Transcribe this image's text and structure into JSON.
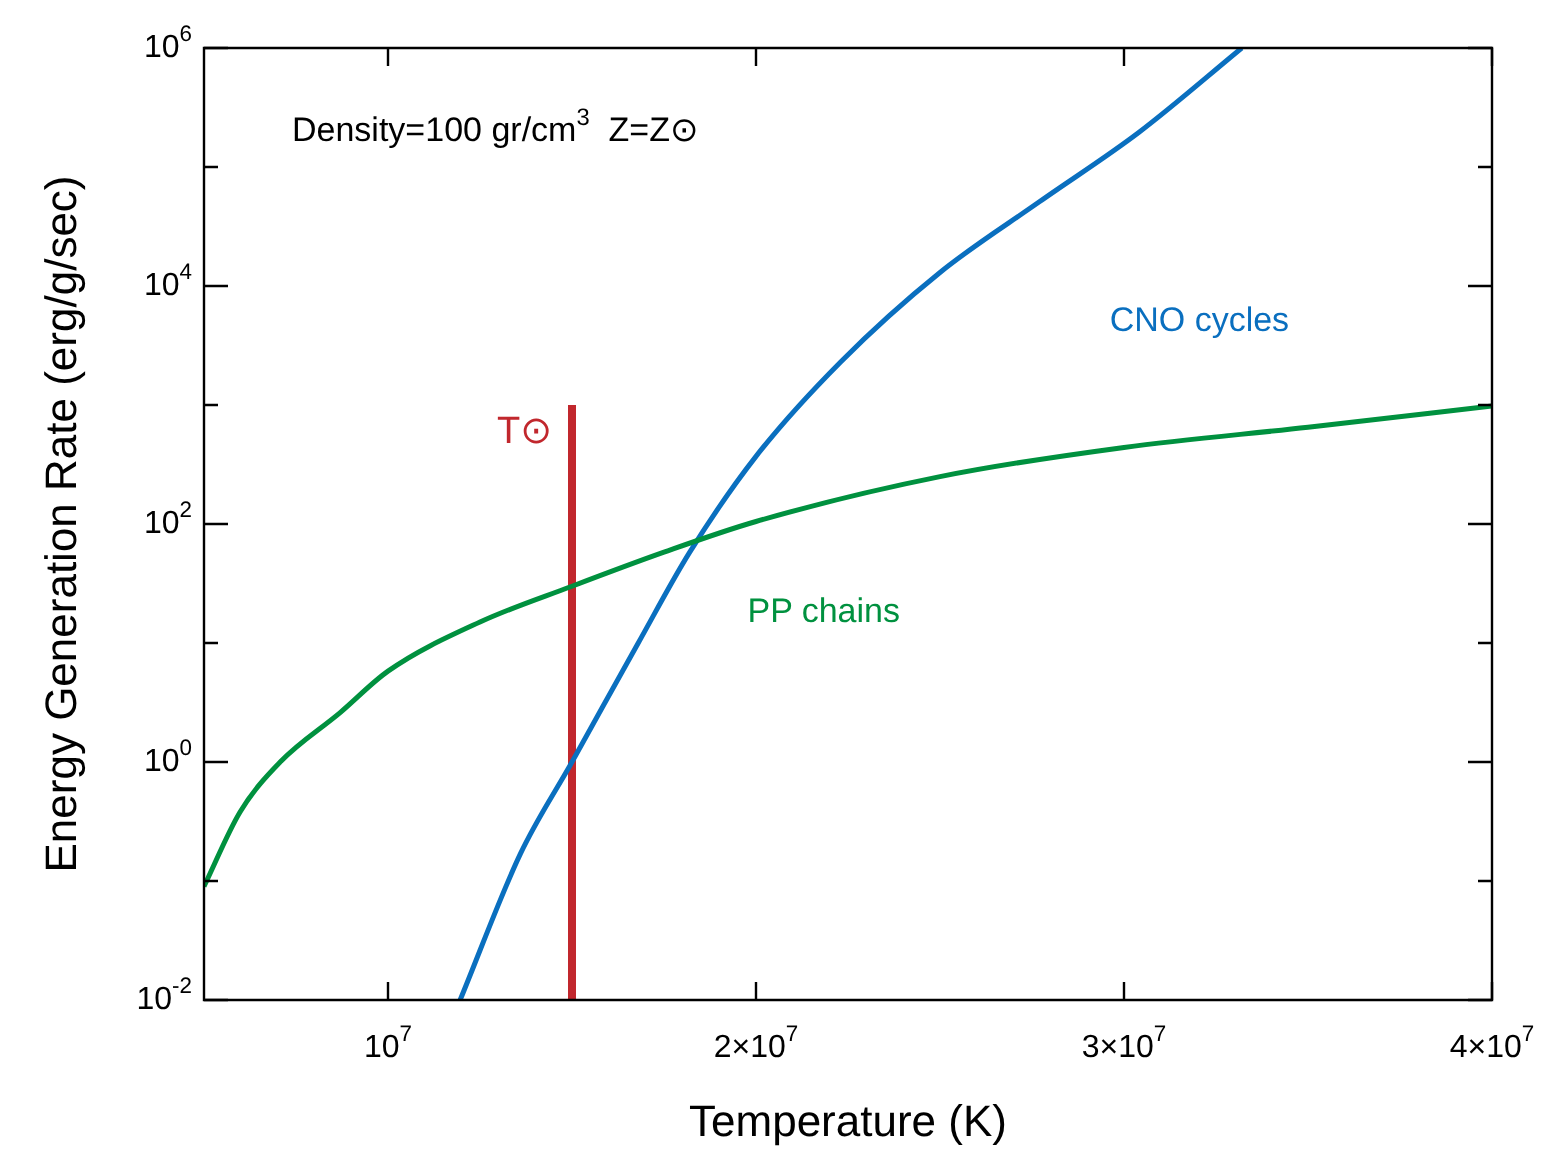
{
  "chart_data": {
    "type": "line",
    "xlabel": "Temperature (K)",
    "ylabel": "Energy Generation Rate (erg/g/sec)",
    "annotations": [
      "Density=100 gr/cm$^{3}$  Z=Z⊙"
    ],
    "log": "y",
    "grid": false,
    "legend": false,
    "marker": "none",
    "line_style": "solid",
    "xlim": [
      5000000,
      40000000
    ],
    "xticks": [
      {
        "value": 10000000,
        "label": "10$^{7}$"
      },
      {
        "value": 20000000,
        "label": "2×10$^{7}$"
      },
      {
        "value": 30000000,
        "label": "3×10$^{7}$"
      },
      {
        "value": 40000000,
        "label": "4×10$^{7}$"
      }
    ],
    "ylim": [
      0.01,
      1000000
    ],
    "yticks": [
      {
        "value": 0.01,
        "label": "10$^{-2}$"
      },
      {
        "value": 0.1,
        "label": null
      },
      {
        "value": 1,
        "label": "10$^{0}$"
      },
      {
        "value": 10,
        "label": null
      },
      {
        "value": 100,
        "label": "10$^{2}$"
      },
      {
        "value": 1000,
        "label": null
      },
      {
        "value": 10000,
        "label": "10$^{4}$"
      },
      {
        "value": 100000,
        "label": null
      },
      {
        "value": 1000000,
        "label": "10$^{6}$"
      }
    ],
    "series": [
      {
        "name": "PP chains",
        "color": "#00913f",
        "x": [
          5000000,
          5980000,
          7070000,
          8700000,
          10000000,
          12500000,
          15000000,
          17500000,
          20000000,
          25000000,
          30000000,
          35000000,
          40000000
        ],
        "values": [
          0.09,
          0.38,
          1,
          2.6,
          5.8,
          15,
          30,
          58,
          105,
          250,
          440,
          650,
          980
        ]
      },
      {
        "name": "CNO cycles",
        "color": "#0a6fbf",
        "x": [
          11960000,
          13600000,
          15000000,
          16800000,
          18200000,
          20000000,
          22300000,
          25000000,
          27700000,
          30400000,
          33200000
        ],
        "values": [
          0.01,
          0.17,
          1,
          10,
          58,
          370,
          2300,
          13000,
          51000,
          195000,
          1000000
        ]
      },
      {
        "name": "T⊙",
        "color": "#c1272d",
        "x": [
          15000000,
          15000000
        ],
        "values": [
          0.01,
          1000
        ]
      }
    ]
  }
}
